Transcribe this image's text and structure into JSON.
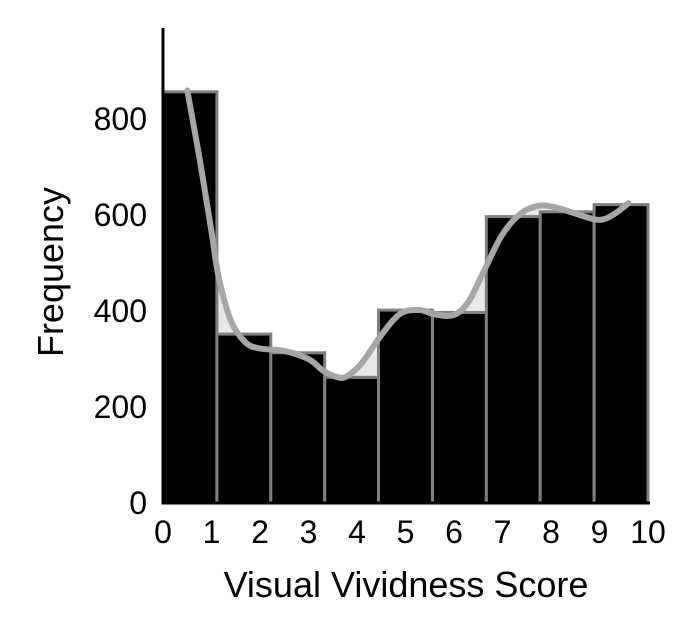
{
  "chart_data": {
    "type": "bar",
    "title": "",
    "xlabel": "Visual Vividness Score",
    "ylabel": "Frequency",
    "xlim": [
      0,
      10
    ],
    "ylim": [
      0,
      990
    ],
    "xticks": [
      "0",
      "1",
      "2",
      "3",
      "4",
      "5",
      "6",
      "7",
      "8",
      "9",
      "10"
    ],
    "yticks": [
      "0",
      "200",
      "400",
      "600",
      "800"
    ],
    "bins": [
      {
        "start": 0.0,
        "end": 1.111,
        "value": 857
      },
      {
        "start": 1.111,
        "end": 2.222,
        "value": 352
      },
      {
        "start": 2.222,
        "end": 3.333,
        "value": 313
      },
      {
        "start": 3.333,
        "end": 4.444,
        "value": 262
      },
      {
        "start": 4.444,
        "end": 5.556,
        "value": 402
      },
      {
        "start": 5.556,
        "end": 6.667,
        "value": 397
      },
      {
        "start": 6.667,
        "end": 7.778,
        "value": 597
      },
      {
        "start": 7.778,
        "end": 8.889,
        "value": 607
      },
      {
        "start": 8.889,
        "end": 10.0,
        "value": 622
      }
    ],
    "density_curve": {
      "x": [
        0.5,
        0.75,
        1.0,
        1.15,
        1.4,
        1.7,
        2.0,
        2.5,
        3.0,
        3.3,
        3.6,
        3.8,
        4.1,
        4.5,
        4.9,
        5.3,
        5.6,
        6.0,
        6.3,
        6.6,
        7.0,
        7.4,
        7.8,
        8.2,
        8.6,
        9.0,
        9.3,
        9.6
      ],
      "y": [
        860,
        720,
        565,
        470,
        380,
        335,
        322,
        317,
        300,
        276,
        262,
        265,
        292,
        350,
        395,
        402,
        393,
        392,
        420,
        480,
        560,
        605,
        620,
        613,
        600,
        590,
        602,
        625
      ]
    },
    "bar_color": "#000000",
    "bar_edge_color": "#808080",
    "curve_color": "#a6a6a6",
    "fill_between_color": "#e8e8e8",
    "grid": false,
    "legend": "none"
  }
}
